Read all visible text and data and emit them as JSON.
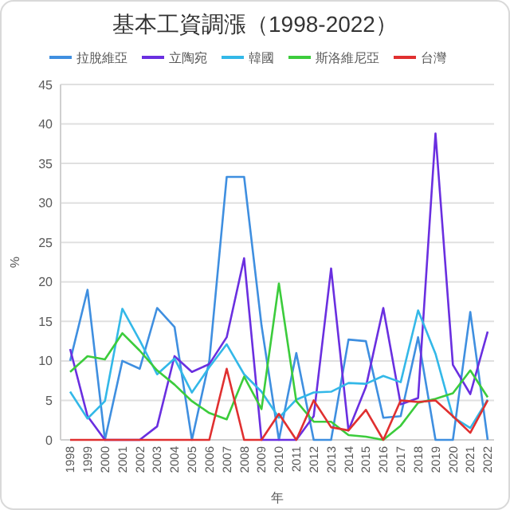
{
  "chart_data": {
    "type": "line",
    "title": "基本工資調漲（1998-2022）",
    "xlabel": "年",
    "ylabel": "%",
    "categories": [
      "1998",
      "1999",
      "2000",
      "2001",
      "2002",
      "2003",
      "2004",
      "2005",
      "2006",
      "2007",
      "2008",
      "2009",
      "2010",
      "2011",
      "2012",
      "2013",
      "2014",
      "2015",
      "2016",
      "2017",
      "2018",
      "2019",
      "2020",
      "2021",
      "2022"
    ],
    "series": [
      {
        "name": "拉脫維亞",
        "color": "#3f8fe0",
        "values": [
          10,
          19,
          0,
          10,
          9,
          16.7,
          14.3,
          0,
          10,
          33.3,
          33.3,
          14.5,
          0,
          11,
          0,
          0,
          12.7,
          12.5,
          2.8,
          3,
          13,
          0,
          0,
          16.2,
          0
        ]
      },
      {
        "name": "立陶宛",
        "color": "#6a2fe0",
        "values": [
          11.5,
          3,
          0,
          0,
          0,
          1.7,
          10.6,
          8.6,
          9.6,
          13,
          23,
          0,
          0,
          0,
          3,
          21.7,
          1.2,
          6.7,
          16.7,
          4.5,
          5.3,
          38.8,
          9.5,
          5.8,
          13.7
        ]
      },
      {
        "name": "韓國",
        "color": "#33b8e8",
        "values": [
          6.1,
          2.7,
          4.9,
          16.6,
          12.6,
          8.3,
          10.3,
          6,
          9.2,
          12.1,
          8.3,
          6.1,
          2.8,
          5.1,
          6,
          6.1,
          7.2,
          7.1,
          8.1,
          7.3,
          16.4,
          10.9,
          2.9,
          1.5,
          5.1
        ]
      },
      {
        "name": "斯洛維尼亞",
        "color": "#3ccc3c",
        "values": [
          8.6,
          10.6,
          10.2,
          13.5,
          11.3,
          8.8,
          7,
          4.9,
          3.4,
          2.6,
          8,
          3.9,
          19.8,
          4.9,
          2.3,
          2.3,
          0.6,
          0.4,
          0,
          1.8,
          4.7,
          5.2,
          5.9,
          8.8,
          5.4
        ]
      },
      {
        "name": "台灣",
        "color": "#e03030",
        "values": [
          0,
          0,
          0,
          0,
          0,
          0,
          0,
          0,
          0,
          9,
          0,
          0,
          3.3,
          0,
          5,
          1.6,
          1.2,
          3.8,
          0,
          5,
          4.8,
          5,
          3,
          0.9,
          5
        ]
      }
    ],
    "ylim": [
      0,
      45
    ],
    "yticks": [
      0,
      5,
      10,
      15,
      20,
      25,
      30,
      35,
      40,
      45
    ],
    "grid": "y",
    "legend": "top",
    "line_style": "solid",
    "marker": "none"
  }
}
